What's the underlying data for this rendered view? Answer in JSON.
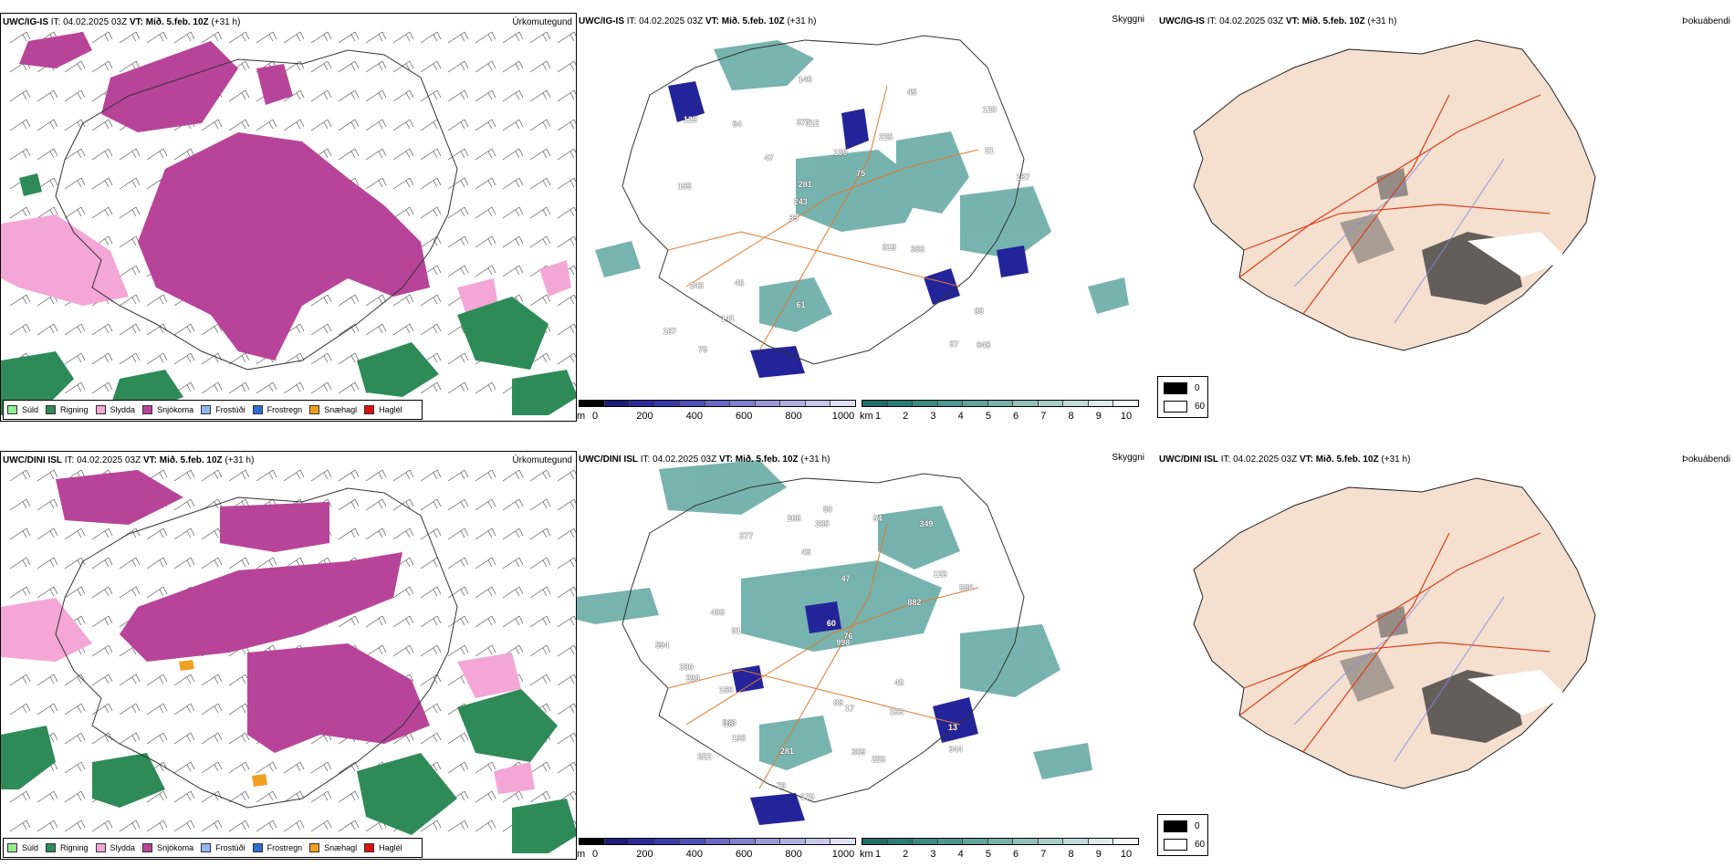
{
  "rows": [
    {
      "model": "UWC/IG-IS",
      "it_label": "IT:",
      "it_value": "04.02.2025 03Z",
      "vt_label": "VT:",
      "vt_value": "Mið. 5.feb. 10Z",
      "lead": "(+31 h)",
      "visibility_labels": [
        "648",
        "165",
        "120",
        "33",
        "225",
        "79",
        "377",
        "130",
        "243",
        "47",
        "167",
        "141",
        "112",
        "75",
        "363",
        "125",
        "146",
        "137",
        "319",
        "21",
        "243",
        "61",
        "281",
        "64",
        "45",
        "46",
        "37",
        "88"
      ]
    },
    {
      "model": "UWC/DINI ISL",
      "it_label": "IT:",
      "it_value": "04.02.2025 03Z",
      "vt_label": "VT:",
      "vt_value": "Mið. 5.feb. 10Z",
      "lead": "(+31 h)",
      "visibility_labels": [
        "322",
        "349",
        "277",
        "123",
        "17",
        "91",
        "165",
        "843",
        "995",
        "882",
        "330",
        "60",
        "153",
        "998",
        "179",
        "208",
        "344",
        "594",
        "18",
        "79",
        "253",
        "285",
        "43",
        "76",
        "60",
        "281",
        "290",
        "54",
        "47",
        "40",
        "406",
        "195",
        "309",
        "88",
        "13"
      ]
    }
  ],
  "panel_titles": {
    "precip": "Úrkomutegund",
    "ceiling": "Skyggni",
    "cloud": "Þokuábendi"
  },
  "precip_legend": [
    {
      "label": "Súld",
      "color": "#90ee90"
    },
    {
      "label": "Rigning",
      "color": "#2e8b57"
    },
    {
      "label": "Slydda",
      "color": "#f4a6d7"
    },
    {
      "label": "Snjókoma",
      "color": "#b8449a"
    },
    {
      "label": "Frostúði",
      "color": "#8fb8f0"
    },
    {
      "label": "Frostregn",
      "color": "#2f6fd0"
    },
    {
      "label": "Snæhagl",
      "color": "#f0a020"
    },
    {
      "label": "Haglél",
      "color": "#e01010"
    }
  ],
  "ceiling_bar": {
    "unit": "m",
    "ticks": [
      "0",
      "200",
      "400",
      "600",
      "800",
      "1000"
    ],
    "colors": [
      "#000000",
      "#1c1c7a",
      "#2a2a9a",
      "#3a3aab",
      "#5050b8",
      "#6a6ac4",
      "#8080cc",
      "#9a9ad6",
      "#b0b0e0",
      "#c8c8ea",
      "#e0e0f4"
    ]
  },
  "vis_bar": {
    "unit": "km",
    "ticks": [
      "1",
      "2",
      "3",
      "4",
      "5",
      "6",
      "7",
      "8",
      "9",
      "10"
    ],
    "colors": [
      "#1f6e68",
      "#2a7d76",
      "#3a8a83",
      "#4e9790",
      "#63a49e",
      "#7ab2ac",
      "#92c1bb",
      "#aacfca",
      "#c2ddd9",
      "#dbece9",
      "#f2f8f7"
    ]
  },
  "cloud_legend": [
    {
      "label": "0",
      "color": "#000000"
    },
    {
      "label": "60",
      "color": "#ffffff"
    }
  ],
  "colors": {
    "snow": "#b8449a",
    "rain": "#2e8b57",
    "sleet": "#f4a6d7",
    "teal": "#4a9a94",
    "ceiling_blue": "#24249a",
    "road_orange": "#e07a30",
    "land_peach": "#f5dfcf",
    "river_blue": "#7d8ce8",
    "road_red": "#d8401c"
  }
}
